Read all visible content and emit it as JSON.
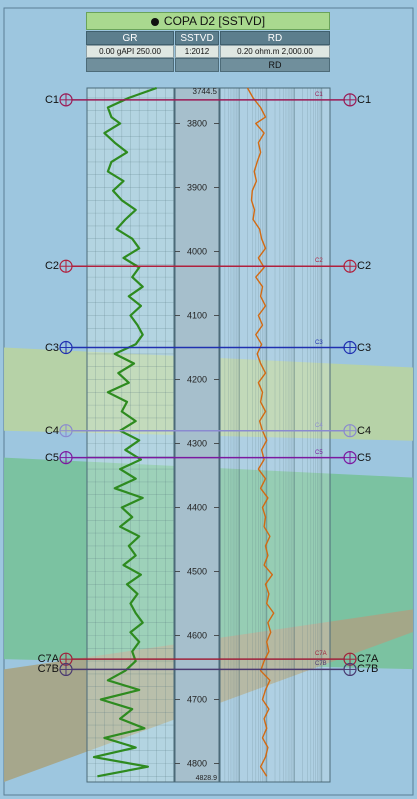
{
  "header": {
    "title": "COPA D2 [SSTVD]",
    "tracks": [
      {
        "name": "GR",
        "scale_min": "0.00",
        "unit": "gAPI",
        "scale_max": "250.00"
      },
      {
        "name": "SSTVD",
        "scale": "1:2012"
      },
      {
        "name": "RD",
        "scale_min": "0.20",
        "unit": "ohm.m",
        "scale_max": "2,000.00",
        "sub": "RD"
      }
    ]
  },
  "colors": {
    "background": "#9dc6df",
    "gr_curve": "#2e8b1f",
    "rd_curve": "#d36a12"
  },
  "chart_data": {
    "type": "line",
    "title": "COPA D2 [SSTVD]",
    "depth_axis": {
      "label": "SSTVD",
      "range": [
        3744.5,
        4828.9
      ],
      "top_label": "3744.5",
      "bottom_label": "4828.9",
      "ticks": [
        3800,
        3900,
        4000,
        4100,
        4200,
        4300,
        4400,
        4500,
        4600,
        4700,
        4800
      ]
    },
    "markers": [
      {
        "name": "C1",
        "depth": 3763,
        "color": "#9b1a55",
        "pick": "C1"
      },
      {
        "name": "C2",
        "depth": 4023,
        "color": "#b0203d",
        "pick": "C2"
      },
      {
        "name": "C3",
        "depth": 4150,
        "color": "#2030b0",
        "pick": "C3"
      },
      {
        "name": "C4",
        "depth": 4280,
        "color": "#8a8ad0",
        "pick": "C4"
      },
      {
        "name": "C5",
        "depth": 4322,
        "color": "#7c19a0",
        "pick": "C5"
      },
      {
        "name": "C7A",
        "depth": 4637,
        "color": "#a0203a",
        "pick": "C7A"
      },
      {
        "name": "C7B",
        "depth": 4653,
        "color": "#4a3a70",
        "pick": "C7B"
      }
    ],
    "zones": [
      {
        "name": "C3-C4",
        "top_depth": 4150,
        "base_depth": 4280,
        "color": "#b7d3a3"
      },
      {
        "name": "C5-C7A",
        "top_depth": 4322,
        "base_depth": 4637,
        "color": "#79c29d"
      },
      {
        "name": "C7B-base",
        "top_depth": 4653,
        "base_depth": 4828.9,
        "color": "#a7a587"
      }
    ],
    "series": [
      {
        "name": "GR",
        "unit": "gAPI",
        "scale": [
          0,
          250
        ],
        "depths": [
          3744.5,
          3760,
          3775,
          3790,
          3800,
          3815,
          3830,
          3845,
          3860,
          3875,
          3890,
          3905,
          3920,
          3935,
          3950,
          3965,
          3980,
          3995,
          4010,
          4025,
          4040,
          4055,
          4070,
          4085,
          4100,
          4115,
          4130,
          4145,
          4160,
          4175,
          4190,
          4205,
          4220,
          4235,
          4250,
          4265,
          4280,
          4295,
          4310,
          4325,
          4340,
          4355,
          4370,
          4385,
          4400,
          4415,
          4430,
          4445,
          4460,
          4475,
          4490,
          4505,
          4520,
          4535,
          4550,
          4565,
          4580,
          4595,
          4610,
          4625,
          4640,
          4655,
          4670,
          4685,
          4700,
          4715,
          4730,
          4745,
          4760,
          4775,
          4790,
          4805,
          4820
        ],
        "values": [
          200,
          120,
          60,
          70,
          95,
          50,
          80,
          115,
          70,
          60,
          105,
          75,
          100,
          140,
          110,
          85,
          130,
          150,
          105,
          150,
          130,
          160,
          120,
          155,
          125,
          145,
          160,
          140,
          80,
          135,
          90,
          120,
          60,
          115,
          100,
          140,
          95,
          150,
          110,
          155,
          95,
          140,
          80,
          160,
          100,
          130,
          95,
          150,
          120,
          140,
          105,
          155,
          115,
          145,
          125,
          140,
          160,
          125,
          150,
          130,
          140,
          110,
          60,
          150,
          40,
          130,
          95,
          165,
          50,
          140,
          20,
          175,
          30
        ]
      },
      {
        "name": "RD",
        "unit": "ohm.m",
        "scale": [
          0.2,
          2000
        ],
        "depths": [
          3744.5,
          3760,
          3775,
          3790,
          3800,
          3815,
          3830,
          3845,
          3860,
          3875,
          3890,
          3905,
          3920,
          3935,
          3950,
          3965,
          3980,
          3995,
          4010,
          4025,
          4040,
          4055,
          4070,
          4085,
          4100,
          4115,
          4130,
          4145,
          4160,
          4175,
          4190,
          4205,
          4220,
          4235,
          4250,
          4265,
          4280,
          4295,
          4310,
          4325,
          4340,
          4355,
          4370,
          4385,
          4400,
          4415,
          4430,
          4445,
          4460,
          4475,
          4490,
          4505,
          4520,
          4535,
          4550,
          4565,
          4580,
          4595,
          4610,
          4625,
          4640,
          4655,
          4670,
          4685,
          4700,
          4715,
          4730,
          4745,
          4760,
          4775,
          4790,
          4805,
          4820
        ],
        "values": [
          2.0,
          3.2,
          6,
          9,
          4,
          8,
          5,
          6,
          4.5,
          3.5,
          4.2,
          3.0,
          2.8,
          3.6,
          3.2,
          5.5,
          6.5,
          9,
          5,
          8,
          4,
          7,
          6,
          9,
          5,
          7,
          4,
          6.5,
          4.5,
          6,
          9,
          5,
          7,
          6,
          9,
          5.5,
          7,
          10,
          6.5,
          8,
          5,
          9,
          6,
          11,
          7,
          9,
          8,
          13,
          9,
          11,
          8,
          16,
          9,
          12,
          10,
          18,
          11,
          14,
          10,
          12,
          8,
          6,
          13,
          9,
          7,
          12,
          8,
          10,
          7,
          11,
          9,
          6,
          10
        ]
      }
    ]
  }
}
